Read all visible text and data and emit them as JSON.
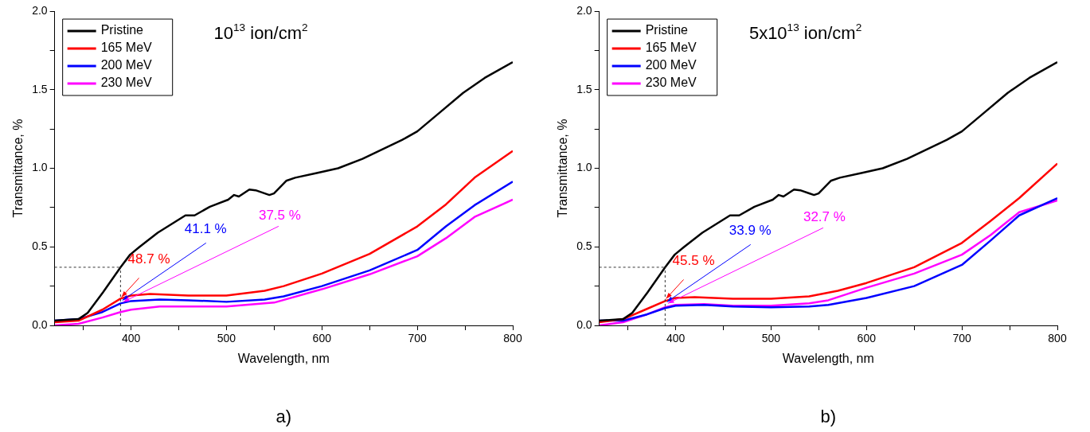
{
  "chart_data": [
    {
      "type": "line",
      "title": "10$^{13}$ ion/cm$^{2}$",
      "xlabel": "Wavelength, nm",
      "ylabel": "Transmittance, %",
      "xlim": [
        320,
        800
      ],
      "ylim": [
        0,
        2
      ],
      "xticks": [
        {
          "value": 350,
          "label": null
        },
        400,
        {
          "value": 450,
          "label": null
        },
        500,
        {
          "value": 550,
          "label": null
        },
        600,
        {
          "value": 650,
          "label": null
        },
        700,
        {
          "value": 750,
          "label": null
        },
        800
      ],
      "yticks": [
        {
          "value": 0,
          "label": "0.0"
        },
        {
          "value": 0.25,
          "label": null
        },
        {
          "value": 0.5,
          "label": "0.5"
        },
        {
          "value": 0.75,
          "label": null
        },
        {
          "value": 1,
          "label": "1.0"
        },
        {
          "value": 1.25,
          "label": null
        },
        {
          "value": 1.5,
          "label": "1.5"
        },
        {
          "value": 1.75,
          "label": null
        },
        {
          "value": 2,
          "label": "2.0"
        }
      ],
      "legend": "top left",
      "grid": false,
      "marker": "none",
      "line_style": "solid",
      "ref_lines": [
        {
          "axis": "x",
          "value": 389
        },
        {
          "axis": "y",
          "value": 0.37
        }
      ],
      "annotations": [
        {
          "text": "48.7 %",
          "x": 390,
          "y": 0.18
        },
        {
          "text": "41.1 %",
          "x": 391,
          "y": 0.16
        },
        {
          "text": "37.5 %",
          "x": 392,
          "y": 0.15
        },
        "a)"
      ],
      "series": [
        {
          "name": "Pristine",
          "color": "#000000",
          "x": [
            320,
            345,
            354.6,
            370.6,
            389,
            399,
            409,
            428,
            457,
            466.6,
            482.6,
            501.8,
            508,
            513,
            524,
            530.6,
            545,
            549.8,
            562.6,
            572,
            594.6,
            617,
            642.6,
            684,
            700,
            722.6,
            748,
            770.6,
            800
          ],
          "values": [
            0.03,
            0.04,
            0.08,
            0.21,
            0.37,
            0.45,
            0.5,
            0.59,
            0.7,
            0.7,
            0.755,
            0.8,
            0.83,
            0.82,
            0.865,
            0.86,
            0.83,
            0.84,
            0.92,
            0.94,
            0.97,
            1.0,
            1.06,
            1.18,
            1.235,
            1.35,
            1.48,
            1.575,
            1.675
          ]
        },
        {
          "name": "165 MeV",
          "color": "#ff0000",
          "x": [
            320,
            345,
            370,
            389,
            400,
            420,
            460,
            500,
            540,
            560,
            600,
            650,
            700,
            730,
            760,
            800
          ],
          "values": [
            0.02,
            0.03,
            0.1,
            0.17,
            0.19,
            0.2,
            0.19,
            0.19,
            0.22,
            0.25,
            0.33,
            0.455,
            0.63,
            0.77,
            0.94,
            1.11
          ]
        },
        {
          "name": "200 MeV",
          "color": "#0000ff",
          "x": [
            320,
            345,
            370,
            389,
            400,
            430,
            460,
            500,
            540,
            560,
            600,
            650,
            700,
            730,
            760,
            800
          ],
          "values": [
            0.03,
            0.04,
            0.085,
            0.14,
            0.155,
            0.165,
            0.16,
            0.15,
            0.165,
            0.185,
            0.25,
            0.35,
            0.48,
            0.63,
            0.765,
            0.915
          ]
        },
        {
          "name": "230 MeV",
          "color": "#ff00ff",
          "x": [
            320,
            345,
            370,
            389,
            400,
            430,
            500,
            550,
            600,
            650,
            700,
            730,
            760,
            800
          ],
          "values": [
            0.0,
            0.01,
            0.05,
            0.085,
            0.1,
            0.12,
            0.12,
            0.145,
            0.23,
            0.325,
            0.44,
            0.555,
            0.69,
            0.8
          ]
        }
      ]
    },
    {
      "type": "line",
      "title": "5x10$^{13}$ ion/cm$^{2}$",
      "xlabel": "Wavelength, nm",
      "ylabel": "Transmittance, %",
      "xlim": [
        320,
        800
      ],
      "ylim": [
        0,
        2
      ],
      "xticks": [
        {
          "value": 350,
          "label": null
        },
        400,
        {
          "value": 450,
          "label": null
        },
        500,
        {
          "value": 550,
          "label": null
        },
        600,
        {
          "value": 650,
          "label": null
        },
        700,
        {
          "value": 750,
          "label": null
        },
        800
      ],
      "yticks": [
        {
          "value": 0,
          "label": "0.0"
        },
        {
          "value": 0.25,
          "label": null
        },
        {
          "value": 0.5,
          "label": "0.5"
        },
        {
          "value": 0.75,
          "label": null
        },
        {
          "value": 1,
          "label": "1.0"
        },
        {
          "value": 1.25,
          "label": null
        },
        {
          "value": 1.5,
          "label": "1.5"
        },
        {
          "value": 1.75,
          "label": null
        },
        {
          "value": 2,
          "label": "2.0"
        }
      ],
      "legend": "top left",
      "grid": false,
      "marker": "none",
      "line_style": "solid",
      "ref_lines": [
        {
          "axis": "x",
          "value": 389
        },
        {
          "axis": "y",
          "value": 0.37
        }
      ],
      "annotations": [
        {
          "text": "45.5 %",
          "x": 390,
          "y": 0.17
        },
        {
          "text": "33.9 %",
          "x": 391,
          "y": 0.15
        },
        {
          "text": "32.7 %",
          "x": 392,
          "y": 0.14
        },
        "b)"
      ],
      "series": [
        {
          "name": "Pristine",
          "color": "#000000",
          "x": [
            320,
            345,
            354.6,
            370.6,
            389,
            399,
            409,
            428,
            457,
            466.6,
            482.6,
            501.8,
            508,
            513,
            524,
            530.6,
            545,
            549.8,
            562.6,
            572,
            594.6,
            617,
            642.6,
            684,
            700,
            722.6,
            748,
            770.6,
            800
          ],
          "values": [
            0.03,
            0.04,
            0.08,
            0.21,
            0.37,
            0.45,
            0.5,
            0.59,
            0.7,
            0.7,
            0.755,
            0.8,
            0.83,
            0.82,
            0.865,
            0.86,
            0.83,
            0.84,
            0.92,
            0.94,
            0.97,
            1.0,
            1.06,
            1.18,
            1.235,
            1.35,
            1.48,
            1.575,
            1.675
          ]
        },
        {
          "name": "165 MeV",
          "color": "#ff0000",
          "x": [
            320,
            345,
            370,
            389,
            400,
            420,
            460,
            500,
            540,
            570,
            600,
            650,
            700,
            730,
            760,
            800
          ],
          "values": [
            0.02,
            0.04,
            0.105,
            0.155,
            0.175,
            0.18,
            0.17,
            0.17,
            0.185,
            0.22,
            0.27,
            0.37,
            0.525,
            0.665,
            0.81,
            1.03
          ]
        },
        {
          "name": "200 MeV",
          "color": "#0000ff",
          "x": [
            320,
            345,
            370,
            389,
            400,
            430,
            460,
            500,
            540,
            560,
            600,
            650,
            700,
            730,
            760,
            800
          ],
          "values": [
            0.03,
            0.03,
            0.07,
            0.11,
            0.125,
            0.13,
            0.12,
            0.115,
            0.12,
            0.13,
            0.175,
            0.25,
            0.385,
            0.54,
            0.7,
            0.81
          ]
        },
        {
          "name": "230 MeV",
          "color": "#ff00ff",
          "x": [
            320,
            345,
            370,
            389,
            400,
            430,
            460,
            500,
            540,
            560,
            600,
            650,
            700,
            730,
            760,
            800
          ],
          "values": [
            0.0,
            0.02,
            0.07,
            0.115,
            0.13,
            0.135,
            0.125,
            0.125,
            0.14,
            0.16,
            0.24,
            0.33,
            0.45,
            0.575,
            0.72,
            0.795
          ]
        }
      ]
    }
  ]
}
